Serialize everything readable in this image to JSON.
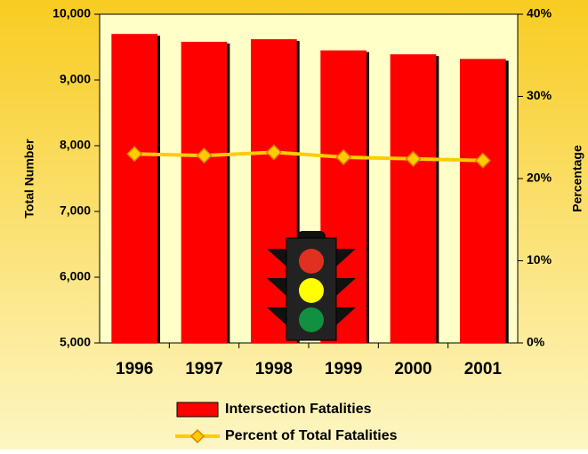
{
  "chart_data": {
    "type": "bar",
    "y_label": "Total Number",
    "y2_label": "Percentage",
    "categories": [
      "1996",
      "1997",
      "1998",
      "1999",
      "2000",
      "2001"
    ],
    "series": [
      {
        "name": "Intersection Fatalities",
        "type": "bar",
        "color": "#ff0000",
        "values": [
          9700,
          9580,
          9620,
          9450,
          9390,
          9320
        ]
      },
      {
        "name": "Percent of Total Fatalities",
        "type": "line",
        "axis": "y2",
        "color": "#ffcc00",
        "values": [
          23.0,
          22.8,
          23.2,
          22.6,
          22.4,
          22.2
        ]
      }
    ],
    "ylim": [
      5000,
      10000
    ],
    "yticks": [
      {
        "value": 5000,
        "label": "5,000"
      },
      {
        "value": 6000,
        "label": "6,000"
      },
      {
        "value": 7000,
        "label": "7,000"
      },
      {
        "value": 8000,
        "label": "8,000"
      },
      {
        "value": 9000,
        "label": "9,000"
      },
      {
        "value": 10000,
        "label": "10,000"
      }
    ],
    "y2lim": [
      0,
      40
    ],
    "y2ticks": [
      {
        "value": 0,
        "label": "0%"
      },
      {
        "value": 10,
        "label": "10%"
      },
      {
        "value": 20,
        "label": "20%"
      },
      {
        "value": 30,
        "label": "30%"
      },
      {
        "value": 40,
        "label": "40%"
      }
    ],
    "legend": "bottom"
  }
}
